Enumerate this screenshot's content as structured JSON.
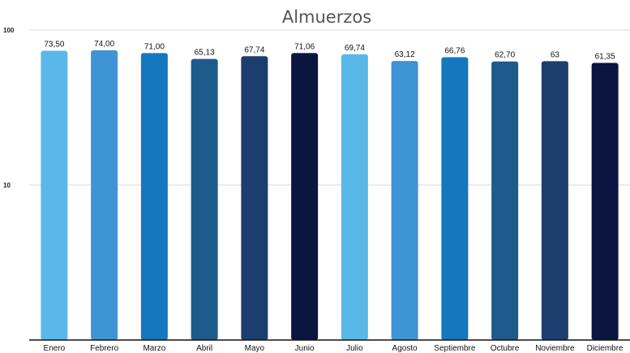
{
  "chart_data": {
    "type": "bar",
    "title": "Almuerzos",
    "categories": [
      "Enero",
      "Febrero",
      "Marzo",
      "Abril",
      "Mayo",
      "Junio",
      "Julio",
      "Agosto",
      "Septiembre",
      "Octubre",
      "Noviembre",
      "Diciembre"
    ],
    "values": [
      73.5,
      74.0,
      71.0,
      65.13,
      67.74,
      71.06,
      69.74,
      63.12,
      66.76,
      62.7,
      63,
      61.35
    ],
    "data_labels": [
      "73,50",
      "74,00",
      "71,00",
      "65,13",
      "67,74",
      "71,06",
      "69,74",
      "63,12",
      "66,76",
      "62,70",
      "63",
      "61,35"
    ],
    "yscale": "log",
    "ylim": [
      1,
      100
    ],
    "yticks": [
      {
        "value": 100,
        "label": "100"
      },
      {
        "value": 10,
        "label": "10"
      }
    ],
    "bar_colors": [
      "#5ab8e8",
      "#3f94d4",
      "#1577bd",
      "#1e5a8c",
      "#1c3e6e",
      "#0a1540",
      "#5ab8e8",
      "#3f94d4",
      "#1577bd",
      "#1e5a8c",
      "#1c3e6e",
      "#0a1540"
    ],
    "grid": true,
    "legend": "none"
  }
}
